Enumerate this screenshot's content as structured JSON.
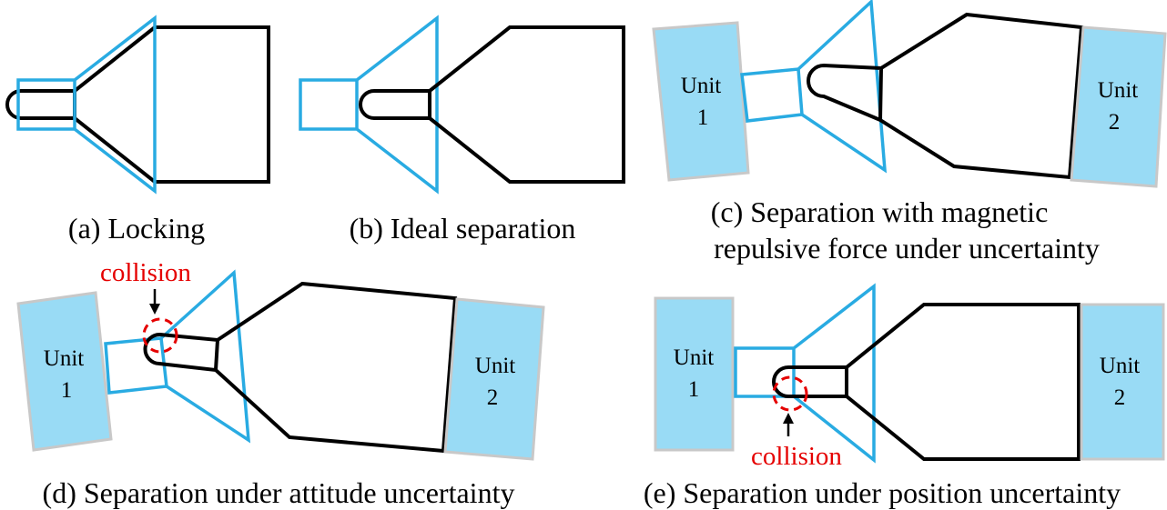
{
  "colors": {
    "blue": "#29ABE2",
    "unit_fill": "#99DBF5",
    "unit_border": "#C8C8C8",
    "black": "#000000",
    "red": "#E50000"
  },
  "panels": {
    "a": {
      "caption": "(a) Locking"
    },
    "b": {
      "caption": "(b) Ideal separation"
    },
    "c": {
      "caption_line1": "(c) Separation with magnetic",
      "caption_line2": "repulsive force under uncertainty",
      "unit1": {
        "word": "Unit",
        "number": "1"
      },
      "unit2": {
        "word": "Unit",
        "number": "2"
      }
    },
    "d": {
      "caption": "(d) Separation under attitude uncertainty",
      "collision": "collision",
      "unit1": {
        "word": "Unit",
        "number": "1"
      },
      "unit2": {
        "word": "Unit",
        "number": "2"
      }
    },
    "e": {
      "caption": "(e) Separation under position uncertainty",
      "collision": "collision",
      "unit1": {
        "word": "Unit",
        "number": "1"
      },
      "unit2": {
        "word": "Unit",
        "number": "2"
      }
    }
  }
}
